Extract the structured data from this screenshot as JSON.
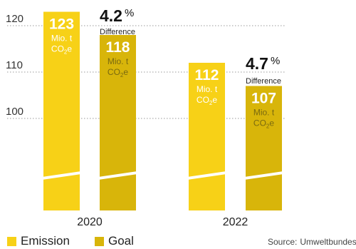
{
  "chart_data": {
    "type": "bar",
    "categories": [
      "2020",
      "2022"
    ],
    "series": [
      {
        "name": "Emission",
        "values": [
          123,
          112
        ],
        "color": "#f7d117"
      },
      {
        "name": "Goal",
        "values": [
          118,
          107
        ],
        "color": "#d8b50a"
      }
    ],
    "unit_line1": "Mio. t",
    "unit_line2_prefix": "CO",
    "unit_line2_sub": "2",
    "unit_line2_suffix": "e",
    "differences": [
      {
        "value": "4.2",
        "percent_sign": "%",
        "label": "Difference"
      },
      {
        "value": "4.7",
        "percent_sign": "%",
        "label": "Difference"
      }
    ],
    "y_ticks": [
      100,
      110,
      120
    ],
    "axis_break": true,
    "grid": "dotted",
    "title": "",
    "xlabel": "",
    "ylabel": ""
  },
  "legend": [
    {
      "label": "Emission",
      "color": "#f7d117"
    },
    {
      "label": "Goal",
      "color": "#d8b50a"
    }
  ],
  "source": {
    "label": "Source:",
    "value": "Umweltbundesamt"
  }
}
